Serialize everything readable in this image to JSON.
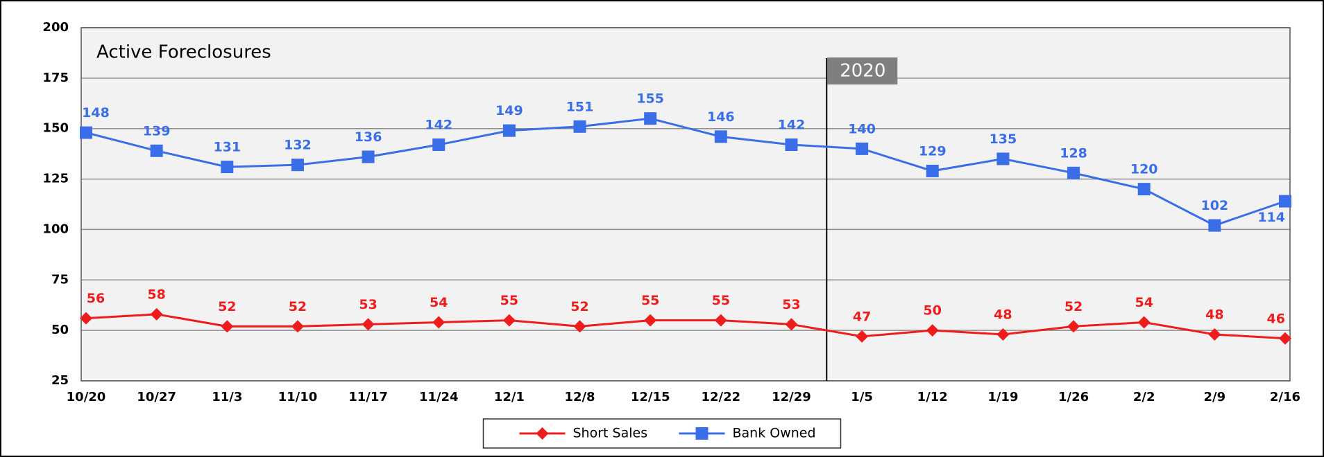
{
  "chart_data": {
    "type": "line",
    "title": "Active Foreclosures",
    "annotation": "2020",
    "categories": [
      "10/20",
      "10/27",
      "11/3",
      "11/10",
      "11/17",
      "11/24",
      "12/1",
      "12/8",
      "12/15",
      "12/22",
      "12/29",
      "1/5",
      "1/12",
      "1/19",
      "1/26",
      "2/2",
      "2/9",
      "2/16"
    ],
    "series": [
      {
        "name": "Short Sales",
        "color": "#ee1c1c",
        "marker": "diamond",
        "values": [
          56,
          58,
          52,
          52,
          53,
          54,
          55,
          52,
          55,
          55,
          53,
          47,
          50,
          48,
          52,
          54,
          48,
          46
        ]
      },
      {
        "name": "Bank Owned",
        "color": "#3a6ee8",
        "marker": "square",
        "values": [
          148,
          139,
          131,
          132,
          136,
          142,
          149,
          151,
          155,
          146,
          142,
          140,
          129,
          135,
          128,
          120,
          102,
          114
        ]
      }
    ],
    "ylim": [
      25,
      200
    ],
    "yticks": [
      25,
      50,
      75,
      100,
      125,
      150,
      175,
      200
    ],
    "grid": true,
    "legend": "bottom"
  }
}
